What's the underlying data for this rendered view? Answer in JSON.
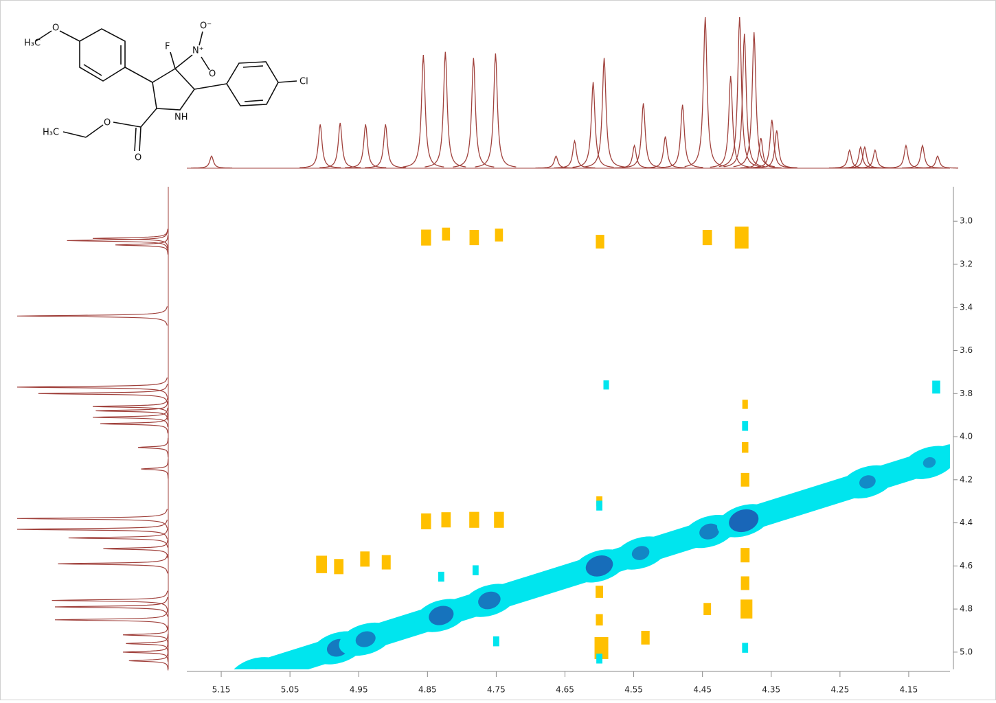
{
  "chart_data": {
    "type": "nmr2d",
    "xlim": [
      5.2,
      4.09
    ],
    "ylim": [
      2.84,
      5.08
    ],
    "xticks": [
      5.15,
      5.05,
      4.95,
      4.85,
      4.75,
      4.65,
      4.55,
      4.45,
      4.35,
      4.25,
      4.15
    ],
    "yticks": [
      {
        "value": 3,
        "label": "3.0"
      },
      3.2,
      3.4,
      3.6,
      3.8,
      {
        "value": 4,
        "label": "4.0"
      },
      4.2,
      4.4,
      4.6,
      4.8,
      {
        "value": 5,
        "label": "5.0"
      }
    ],
    "top_projection": {
      "color": "#a0413c",
      "x": [
        5.164,
        5.006,
        4.977,
        4.94,
        4.911,
        4.856,
        4.824,
        4.783,
        4.751,
        4.663,
        4.636,
        4.609,
        4.593,
        4.549,
        4.536,
        4.504,
        4.479,
        4.446,
        4.409,
        4.396,
        4.389,
        4.375,
        4.365,
        4.349,
        4.342,
        4.236,
        4.22,
        4.214,
        4.199,
        4.154,
        4.13,
        4.108
      ],
      "values": [
        8,
        29,
        30,
        29,
        29,
        75,
        77,
        73,
        76,
        8,
        18,
        57,
        73,
        15,
        43,
        21,
        42,
        100,
        61,
        100,
        89,
        90,
        20,
        32,
        25,
        12,
        14,
        14,
        12,
        15,
        15,
        8
      ]
    },
    "left_projection": {
      "color": "#a0413c",
      "y": [
        3.08,
        3.09,
        3.11,
        3.44,
        3.77,
        3.8,
        3.86,
        3.88,
        3.91,
        3.94,
        4.05,
        4.15,
        4.38,
        4.43,
        4.47,
        4.52,
        4.59,
        4.76,
        4.79,
        4.85,
        4.92,
        4.96,
        5.0,
        5.04
      ],
      "values": [
        50,
        67,
        35,
        100,
        100,
        86,
        50,
        48,
        50,
        45,
        20,
        18,
        100,
        100,
        66,
        43,
        73,
        77,
        75,
        75,
        30,
        28,
        30,
        26
      ]
    },
    "diagonal": {
      "color": "#00e5ee",
      "core_color": "#1a5fb4",
      "x": [
        5.1,
        4.98,
        4.94,
        4.83,
        4.76,
        4.6,
        4.54,
        4.44,
        4.39,
        4.21,
        4.12
      ],
      "values": [
        20,
        70,
        60,
        80,
        70,
        90,
        50,
        60,
        100,
        45,
        30
      ]
    },
    "peaks": [
      {
        "color": "#ffc000",
        "x": [
          4.852,
          4.823,
          4.782,
          4.746,
          4.599,
          4.443,
          4.393,
          4.852,
          4.823,
          4.782,
          4.746,
          5.004,
          4.979,
          4.941,
          4.91,
          4.597,
          4.533,
          4.443,
          4.386,
          4.388,
          4.388,
          4.388,
          4.6,
          4.6,
          4.6,
          4.388,
          4.388
        ],
        "y": [
          3.076,
          3.06,
          3.076,
          3.064,
          3.095,
          3.076,
          3.076,
          4.393,
          4.386,
          4.386,
          4.386,
          4.593,
          4.603,
          4.568,
          4.583,
          4.981,
          4.933,
          4.8,
          4.8,
          4.2,
          4.55,
          4.68,
          4.72,
          4.85,
          4.3,
          4.05,
          3.85
        ],
        "values": [
          60,
          40,
          55,
          40,
          45,
          55,
          100,
          60,
          55,
          60,
          60,
          70,
          55,
          55,
          50,
          100,
          45,
          35,
          80,
          45,
          50,
          45,
          35,
          30,
          20,
          25,
          15
        ]
      },
      {
        "color": "#00e5ee",
        "x": [
          4.59,
          4.11,
          4.388,
          4.388,
          4.6,
          4.6,
          4.83,
          4.78,
          4.75
        ],
        "y": [
          3.76,
          3.77,
          3.95,
          4.98,
          4.32,
          5.03,
          4.65,
          4.62,
          4.95
        ],
        "values": [
          15,
          40,
          20,
          20,
          20,
          20,
          20,
          20,
          20
        ]
      }
    ]
  },
  "structure": {
    "labels": [
      "H₃C",
      "O",
      "F",
      "N⁺",
      "O⁻",
      "O",
      "Cl",
      "NH",
      "H₃C",
      "O",
      "O"
    ]
  }
}
